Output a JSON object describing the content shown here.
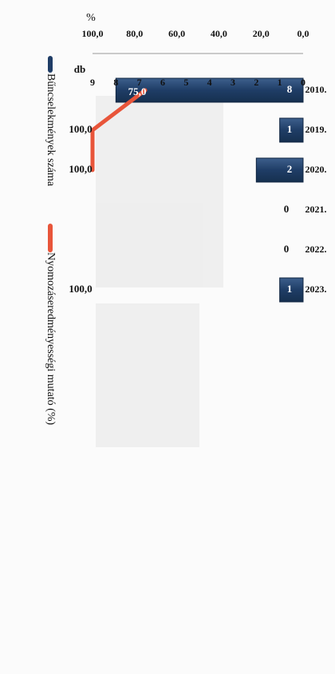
{
  "chart_data": {
    "type": "bar",
    "orientation": "rotated-90-clockwise",
    "categories": [
      "2010.",
      "2019.",
      "2020.",
      "2021.",
      "2022.",
      "2023."
    ],
    "series": [
      {
        "name": "Bűncselekmények száma",
        "type": "bar",
        "axis": "left",
        "values": [
          8,
          1,
          2,
          0,
          0,
          1
        ],
        "labels": [
          "8",
          "1",
          "2",
          "0",
          "0",
          "1"
        ],
        "color": "#1f3d66"
      },
      {
        "name": "Nyomozáseredményességi mutató (%)",
        "type": "line",
        "axis": "right",
        "values": [
          75.0,
          100.0,
          100.0,
          null,
          null,
          100.0
        ],
        "labels": [
          "75,0",
          "100,0",
          "100,0",
          "",
          "",
          "100,0"
        ],
        "color": "#e8553a"
      }
    ],
    "y_left": {
      "label": "db",
      "range": [
        0,
        9
      ],
      "ticks": [
        "0",
        "1",
        "2",
        "3",
        "4",
        "5",
        "6",
        "7",
        "8",
        "9"
      ]
    },
    "y_right": {
      "label": "%",
      "range": [
        0,
        100
      ],
      "ticks": [
        "0,0",
        "20,0",
        "40,0",
        "60,0",
        "80,0",
        "100,0"
      ]
    },
    "legend_position": "top",
    "grid": false
  }
}
